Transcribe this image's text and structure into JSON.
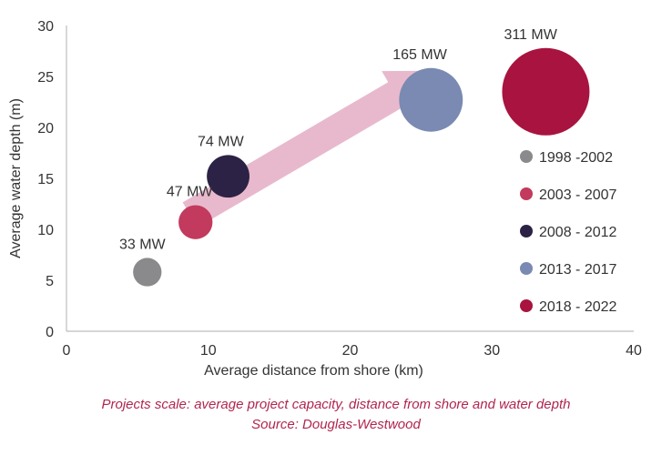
{
  "chart_data": {
    "type": "scatter",
    "xlabel": "Average distance from shore (km)",
    "ylabel": "Average water depth (m)",
    "xlim": [
      0,
      40
    ],
    "ylim": [
      0,
      30
    ],
    "x_ticks": [
      "0",
      "10",
      "20",
      "30",
      "40"
    ],
    "y_ticks": [
      "0",
      "5",
      "10",
      "15",
      "20",
      "25",
      "30"
    ],
    "grid": false,
    "legend_position": "right",
    "trend_arrow": true,
    "trend_arrow_color": "#e8b9cd",
    "series": [
      {
        "name": "1998 -2002",
        "x": 5.7,
        "y": 5.8,
        "capacity": 33,
        "label": "33 MW",
        "color": "#8a8a8c"
      },
      {
        "name": "2003 - 2007",
        "x": 9.1,
        "y": 10.7,
        "capacity": 47,
        "label": "47 MW",
        "color": "#c23a5e"
      },
      {
        "name": "2008 - 2012",
        "x": 11.4,
        "y": 15.2,
        "capacity": 74,
        "label": "74 MW",
        "color": "#2c2245"
      },
      {
        "name": "2013 - 2017",
        "x": 25.7,
        "y": 22.7,
        "capacity": 165,
        "label": "165 MW",
        "color": "#7a8ab2"
      },
      {
        "name": "2018 - 2022",
        "x": 33.8,
        "y": 23.5,
        "capacity": 311,
        "label": "311 MW",
        "color": "#a8143f"
      }
    ]
  },
  "caption": {
    "line1": "Projects scale: average project capacity, distance from shore and water depth",
    "line2": "Source: Douglas-Westwood"
  }
}
